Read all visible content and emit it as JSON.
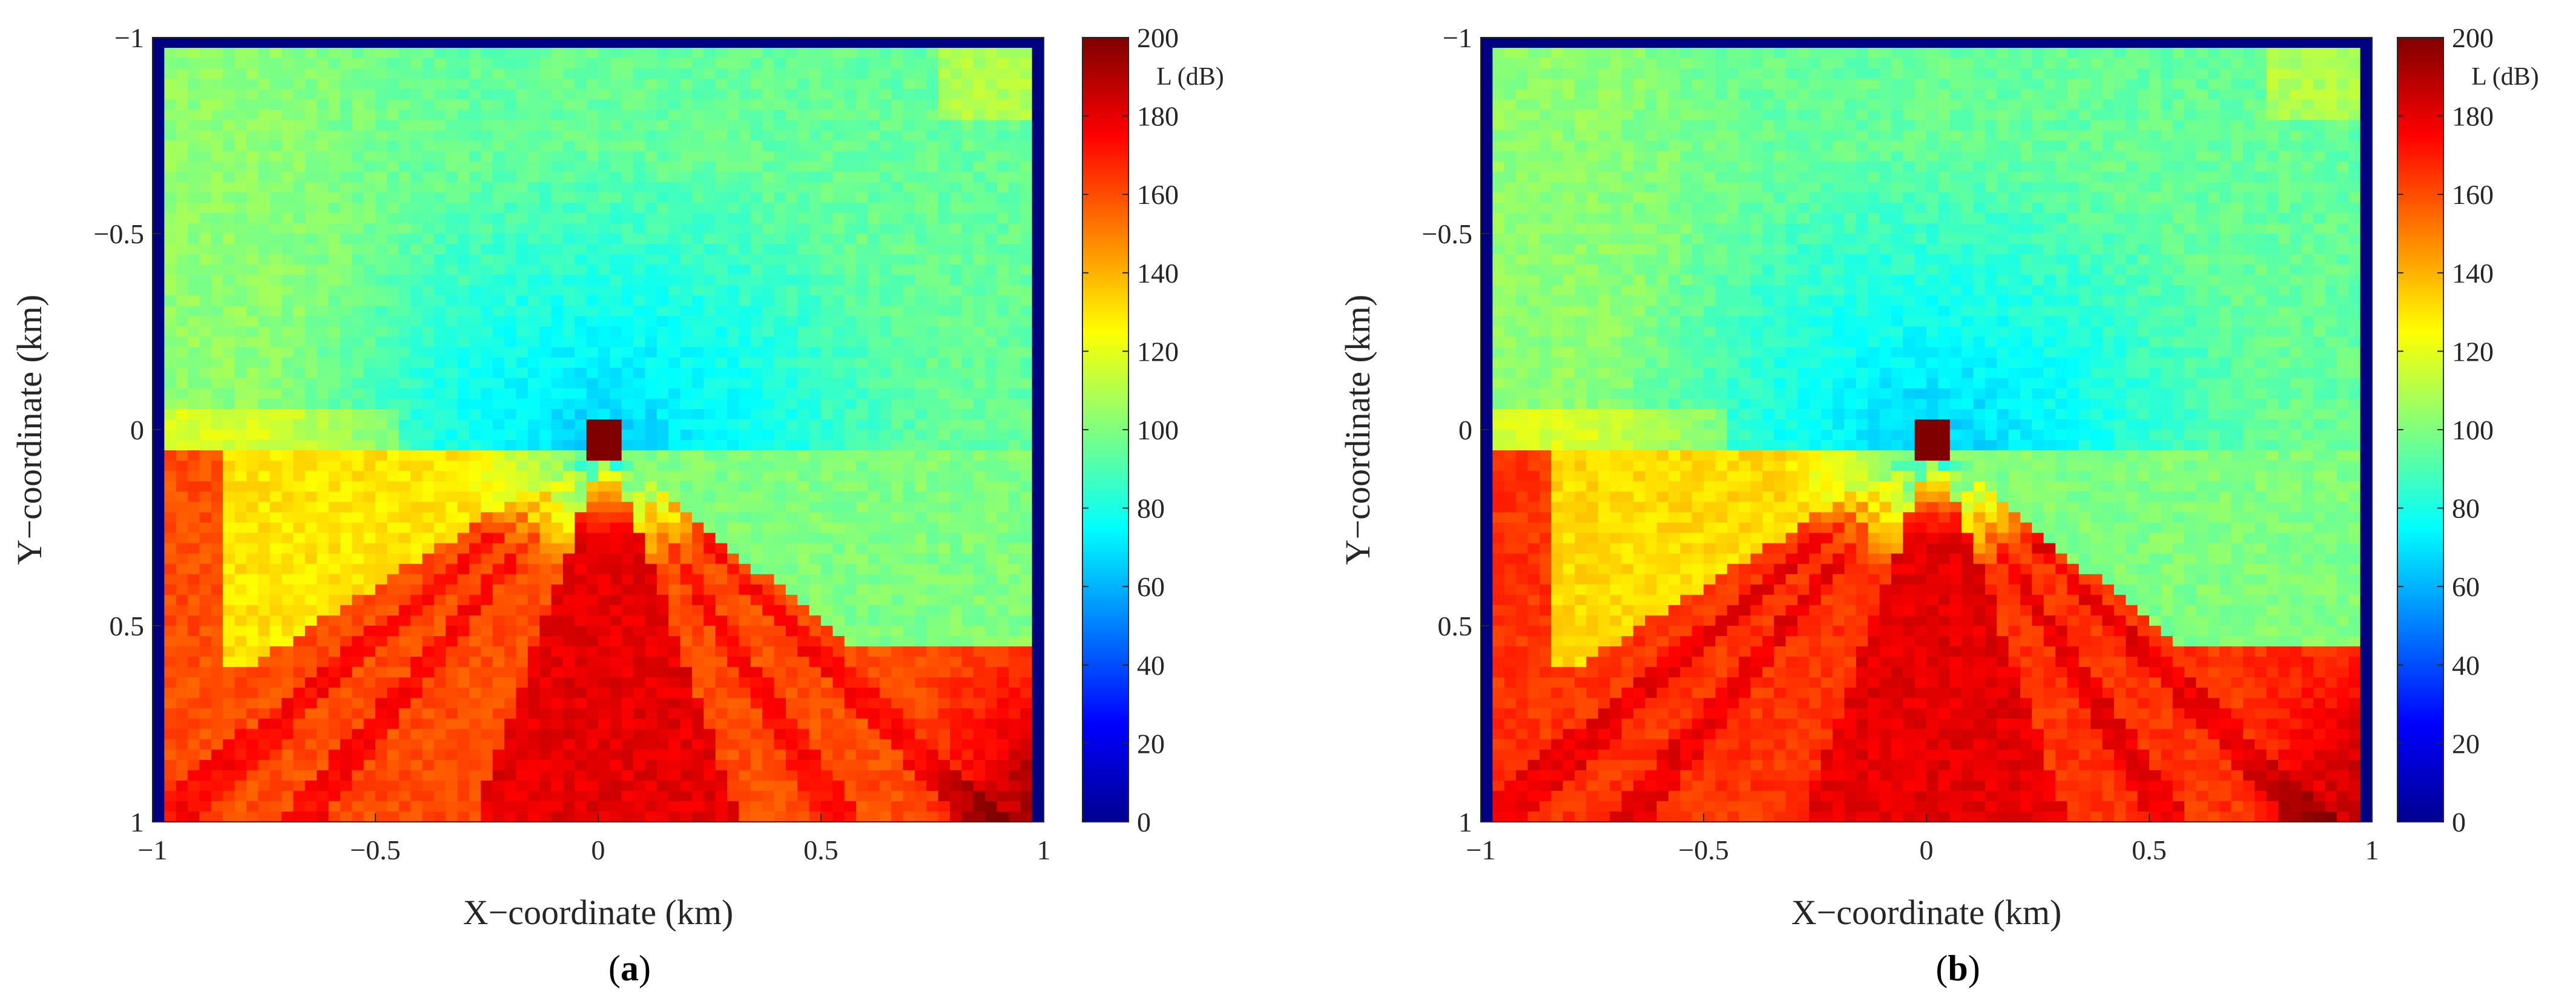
{
  "chart_data": [
    {
      "type": "heatmap",
      "panel_label": "a",
      "xlabel": "X−coordinate (km)",
      "ylabel": "Y−coordinate (km)",
      "xlim": [
        -1,
        1
      ],
      "ylim": [
        -1,
        1
      ],
      "y_axis_direction": "top-to-bottom",
      "xticks": [
        -1,
        -0.5,
        0,
        0.5,
        1
      ],
      "xtick_labels": [
        "−1",
        "−0.5",
        "0",
        "0.5",
        "1"
      ],
      "yticks": [
        -1,
        -0.5,
        0,
        0.5,
        1
      ],
      "ytick_labels": [
        "−1",
        "−0.5",
        "0",
        "0.5",
        "1"
      ],
      "colorbar": {
        "label": "L (dB)",
        "range": [
          0,
          200
        ],
        "ticks": [
          0,
          20,
          40,
          60,
          80,
          100,
          120,
          140,
          160,
          180,
          200
        ],
        "colormap": "jet"
      },
      "source": {
        "x": 0.02,
        "y": 0.03,
        "value": 200
      },
      "field_description_values": {
        "upper_half_typical": 95,
        "near_source_min": 65,
        "lower_half_typical": 160,
        "lower_center_cone": 180,
        "lower_right_corner_max": 195,
        "border_value": 0
      }
    },
    {
      "type": "heatmap",
      "panel_label": "b",
      "xlabel": "X−coordinate (km)",
      "ylabel": "Y−coordinate (km)",
      "xlim": [
        -1,
        1
      ],
      "ylim": [
        -1,
        1
      ],
      "y_axis_direction": "top-to-bottom",
      "xticks": [
        -1,
        -0.5,
        0,
        0.5,
        1
      ],
      "xtick_labels": [
        "−1",
        "−0.5",
        "0",
        "0.5",
        "1"
      ],
      "yticks": [
        -1,
        -0.5,
        0,
        0.5,
        1
      ],
      "ytick_labels": [
        "−1",
        "−0.5",
        "0",
        "0.5",
        "1"
      ],
      "colorbar": {
        "label": "L (dB)",
        "range": [
          0,
          200
        ],
        "ticks": [
          0,
          20,
          40,
          60,
          80,
          100,
          120,
          140,
          160,
          180,
          200
        ],
        "colormap": "jet"
      },
      "source": {
        "x": 0.02,
        "y": 0.03,
        "value": 200
      },
      "field_description_values": {
        "upper_half_typical": 95,
        "near_source_min": 65,
        "lower_half_typical": 165,
        "lower_center_cone": 180,
        "lower_right_corner_max": 190,
        "border_value": 0
      }
    }
  ]
}
